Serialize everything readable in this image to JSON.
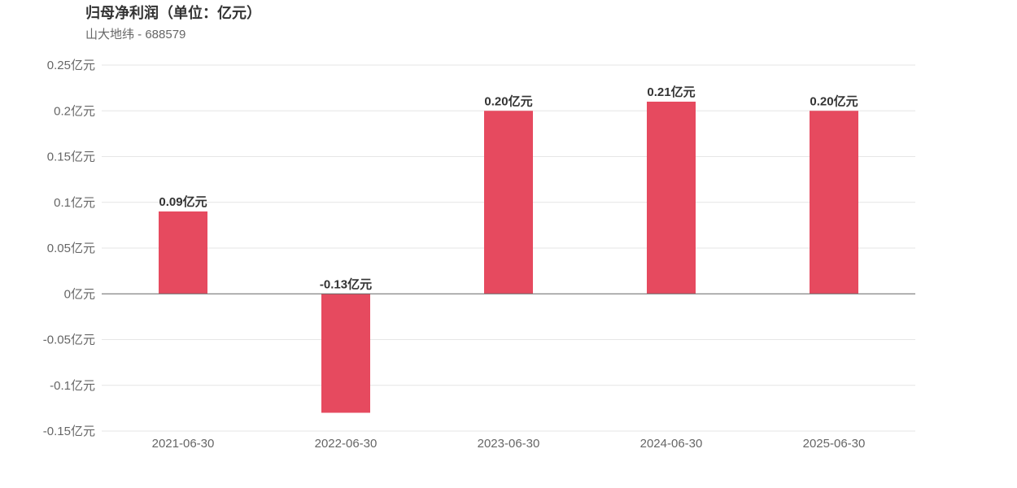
{
  "chart_data": {
    "type": "bar",
    "title": "归母净利润（单位：亿元）",
    "subtitle": "山大地纬 - 688579",
    "categories": [
      "2021-06-30",
      "2022-06-30",
      "2023-06-30",
      "2024-06-30",
      "2025-06-30"
    ],
    "values": [
      0.09,
      -0.13,
      0.2,
      0.21,
      0.2
    ],
    "data_labels": [
      "0.09亿元",
      "-0.13亿元",
      "0.20亿元",
      "0.21亿元",
      "0.20亿元"
    ],
    "yticks": [
      0.25,
      0.2,
      0.15,
      0.1,
      0.05,
      0,
      -0.05,
      -0.1,
      -0.15
    ],
    "ytick_labels": [
      "0.25亿元",
      "0.2亿元",
      "0.15亿元",
      "0.1亿元",
      "0.05亿元",
      "0亿元",
      "-0.05亿元",
      "-0.1亿元",
      "-0.15亿元"
    ],
    "ylim": [
      -0.15,
      0.25
    ],
    "grid": true,
    "xlabel": "",
    "ylabel": "",
    "colors": {
      "bar": "#e64a5f",
      "grid": "#e6e6e6",
      "zero_line": "#666666"
    }
  }
}
